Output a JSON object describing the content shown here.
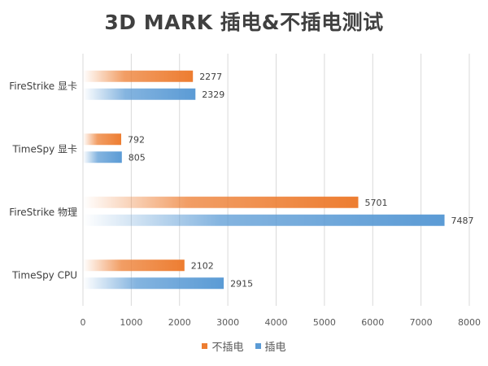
{
  "chart_data": {
    "type": "bar",
    "orientation": "horizontal",
    "title": "3D MARK 插电&不插电测试",
    "categories": [
      "FireStrike 显卡",
      "TimeSpy 显卡",
      "FireStrike 物理",
      "TimeSpy CPU"
    ],
    "series": [
      {
        "name": "不插电",
        "color": "#ED7D31",
        "values": [
          2277,
          792,
          5701,
          2102
        ]
      },
      {
        "name": "插电",
        "color": "#5B9BD5",
        "values": [
          2329,
          805,
          7487,
          2915
        ]
      }
    ],
    "xlim": [
      0,
      8000
    ],
    "xticks": [
      0,
      1000,
      2000,
      3000,
      4000,
      5000,
      6000,
      7000,
      8000
    ],
    "grid": true,
    "data_labels": true,
    "legend_position": "bottom",
    "bar_style": "gradient fading to white at the axis"
  }
}
